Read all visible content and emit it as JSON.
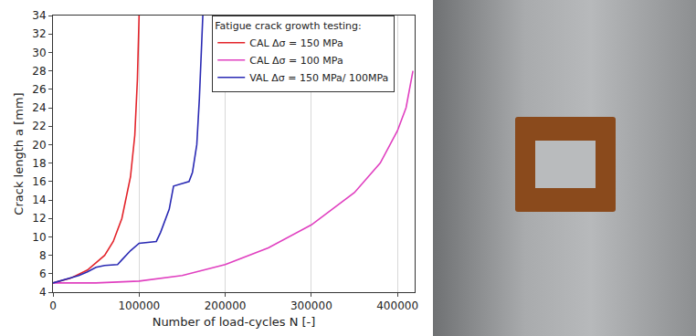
{
  "chart_data": {
    "type": "line",
    "x_label": "Number of load-cycles N [-]",
    "y_label": "Crack length a [mm]",
    "legend_title": "Fatigue crack growth testing:",
    "xlim": [
      0,
      420000
    ],
    "xticks": [
      0,
      100000,
      200000,
      300000,
      400000
    ],
    "ylim": [
      4,
      34
    ],
    "yticks": [
      4,
      6,
      8,
      10,
      12,
      14,
      16,
      18,
      20,
      22,
      24,
      26,
      28,
      30,
      32,
      34
    ],
    "grid": "x",
    "legend": "top",
    "series": [
      {
        "name": "CAL Δσ = 150 MPa",
        "color": "#e3242b",
        "x": [
          0,
          20000,
          40000,
          60000,
          70000,
          80000,
          90000,
          95000,
          98000,
          100000
        ],
        "values": [
          5,
          5.5,
          6.4,
          8,
          9.5,
          12,
          16.5,
          21,
          27,
          34
        ]
      },
      {
        "name": "CAL Δσ = 100 MPa",
        "color": "#e040c0",
        "x": [
          0,
          50000,
          100000,
          150000,
          200000,
          250000,
          300000,
          350000,
          380000,
          400000,
          410000,
          418000
        ],
        "values": [
          5,
          5,
          5.2,
          5.8,
          7,
          8.8,
          11.3,
          14.8,
          18,
          21.5,
          24,
          28
        ]
      },
      {
        "name": "VAL Δσ = 150 MPa/ 100MPa",
        "color": "#2a2ab4",
        "x": [
          0,
          20000,
          30000,
          40000,
          50000,
          60000,
          75000,
          80000,
          90000,
          100000,
          110000,
          120000,
          125000,
          135000,
          140000,
          150000,
          158000,
          162000,
          167000,
          170000,
          172000,
          174000
        ],
        "values": [
          5,
          5.5,
          5.8,
          6.2,
          6.7,
          6.9,
          7,
          7.5,
          8.5,
          9.3,
          9.4,
          9.5,
          10.5,
          13,
          15.5,
          15.8,
          16,
          17,
          20,
          25,
          30,
          34
        ]
      }
    ]
  }
}
